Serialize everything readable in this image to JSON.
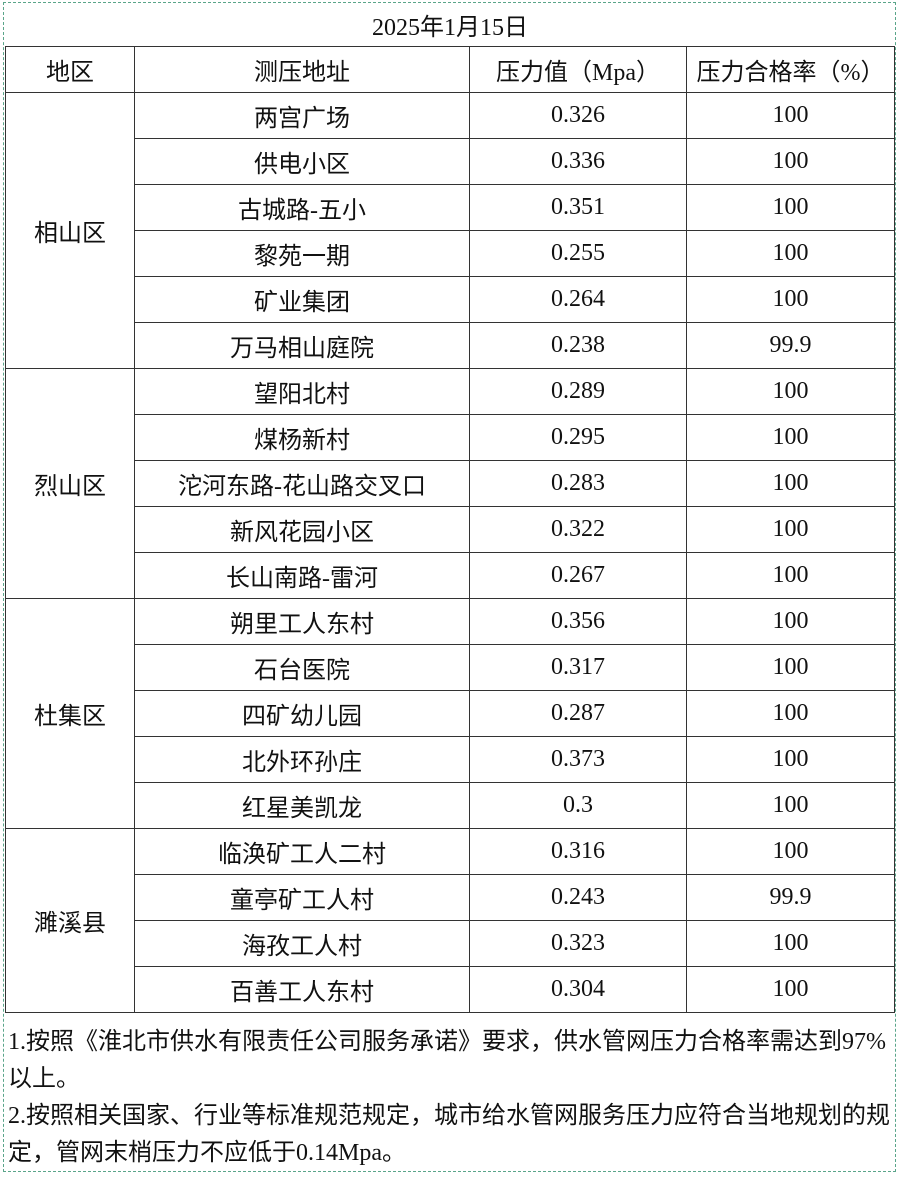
{
  "title": "2025年1月15日",
  "headers": [
    "地区",
    "测压地址",
    "压力值（Mpa）",
    "压力合格率（%）"
  ],
  "regions": [
    {
      "name": "相山区",
      "rows": [
        {
          "address": "两宫广场",
          "pressure": "0.326",
          "rate": "100"
        },
        {
          "address": "供电小区",
          "pressure": "0.336",
          "rate": "100"
        },
        {
          "address": "古城路-五小",
          "pressure": "0.351",
          "rate": "100"
        },
        {
          "address": "黎苑一期",
          "pressure": "0.255",
          "rate": "100"
        },
        {
          "address": "矿业集团",
          "pressure": "0.264",
          "rate": "100"
        },
        {
          "address": "万马相山庭院",
          "pressure": "0.238",
          "rate": "99.9"
        }
      ]
    },
    {
      "name": "烈山区",
      "rows": [
        {
          "address": "望阳北村",
          "pressure": "0.289",
          "rate": "100"
        },
        {
          "address": "煤杨新村",
          "pressure": "0.295",
          "rate": "100"
        },
        {
          "address": "沱河东路-花山路交叉口",
          "pressure": "0.283",
          "rate": "100"
        },
        {
          "address": "新风花园小区",
          "pressure": "0.322",
          "rate": "100"
        },
        {
          "address": "长山南路-雷河",
          "pressure": "0.267",
          "rate": "100"
        }
      ]
    },
    {
      "name": "杜集区",
      "rows": [
        {
          "address": "朔里工人东村",
          "pressure": "0.356",
          "rate": "100"
        },
        {
          "address": "石台医院",
          "pressure": "0.317",
          "rate": "100"
        },
        {
          "address": "四矿幼儿园",
          "pressure": "0.287",
          "rate": "100"
        },
        {
          "address": "北外环孙庄",
          "pressure": "0.373",
          "rate": "100"
        },
        {
          "address": "红星美凯龙",
          "pressure": "0.3",
          "rate": "100"
        }
      ]
    },
    {
      "name": "濉溪县",
      "rows": [
        {
          "address": "临涣矿工人二村",
          "pressure": "0.316",
          "rate": "100"
        },
        {
          "address": "童亭矿工人村",
          "pressure": "0.243",
          "rate": "99.9"
        },
        {
          "address": "海孜工人村",
          "pressure": "0.323",
          "rate": "100"
        },
        {
          "address": "百善工人东村",
          "pressure": "0.304",
          "rate": "100"
        }
      ]
    }
  ],
  "notes": [
    "1.按照《淮北市供水有限责任公司服务承诺》要求，供水管网压力合格率需达到97%以上。",
    "2.按照相关国家、行业等标准规范规定，城市给水管网服务压力应符合当地规划的规定，管网末梢压力不应低于0.14Mpa。"
  ],
  "colors": {
    "border": "#333333",
    "frame": "#5aa58a"
  }
}
